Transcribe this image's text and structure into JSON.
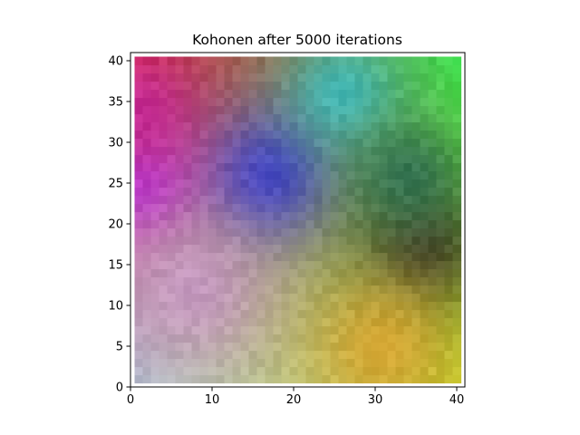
{
  "chart_data": {
    "type": "heatmap",
    "title": "Kohonen after 5000 iterations",
    "xlabel": "",
    "ylabel": "",
    "xlim": [
      0,
      41
    ],
    "ylim": [
      0,
      41
    ],
    "xticks": [
      0,
      10,
      20,
      30,
      40
    ],
    "yticks": [
      0,
      5,
      10,
      15,
      20,
      25,
      30,
      35,
      40
    ],
    "grid": false,
    "cell_range": [
      1,
      40
    ],
    "cell_count": 40,
    "corner_colors": {
      "top_left": "#d2284a",
      "top_right": "#3fdd4c",
      "bottom_left": "#b4bccc",
      "bottom_right": "#c2ce2c"
    },
    "color_anchors": [
      {
        "x": 17,
        "y": 26,
        "color": "#3b3ecc",
        "spread": 6
      },
      {
        "x": 36,
        "y": 17,
        "color": "#3a3122",
        "spread": 6
      },
      {
        "x": 1,
        "y": 25,
        "color": "#b835d6",
        "spread": 5
      },
      {
        "x": 26,
        "y": 36,
        "color": "#3fbcc0",
        "spread": 5
      },
      {
        "x": 31,
        "y": 5,
        "color": "#d8a430",
        "spread": 6
      },
      {
        "x": 8,
        "y": 12,
        "color": "#c79ac4",
        "spread": 6
      },
      {
        "x": 34,
        "y": 26,
        "color": "#2f6f52",
        "spread": 5
      },
      {
        "x": 1,
        "y": 34,
        "color": "#c52a96",
        "spread": 5
      }
    ]
  }
}
